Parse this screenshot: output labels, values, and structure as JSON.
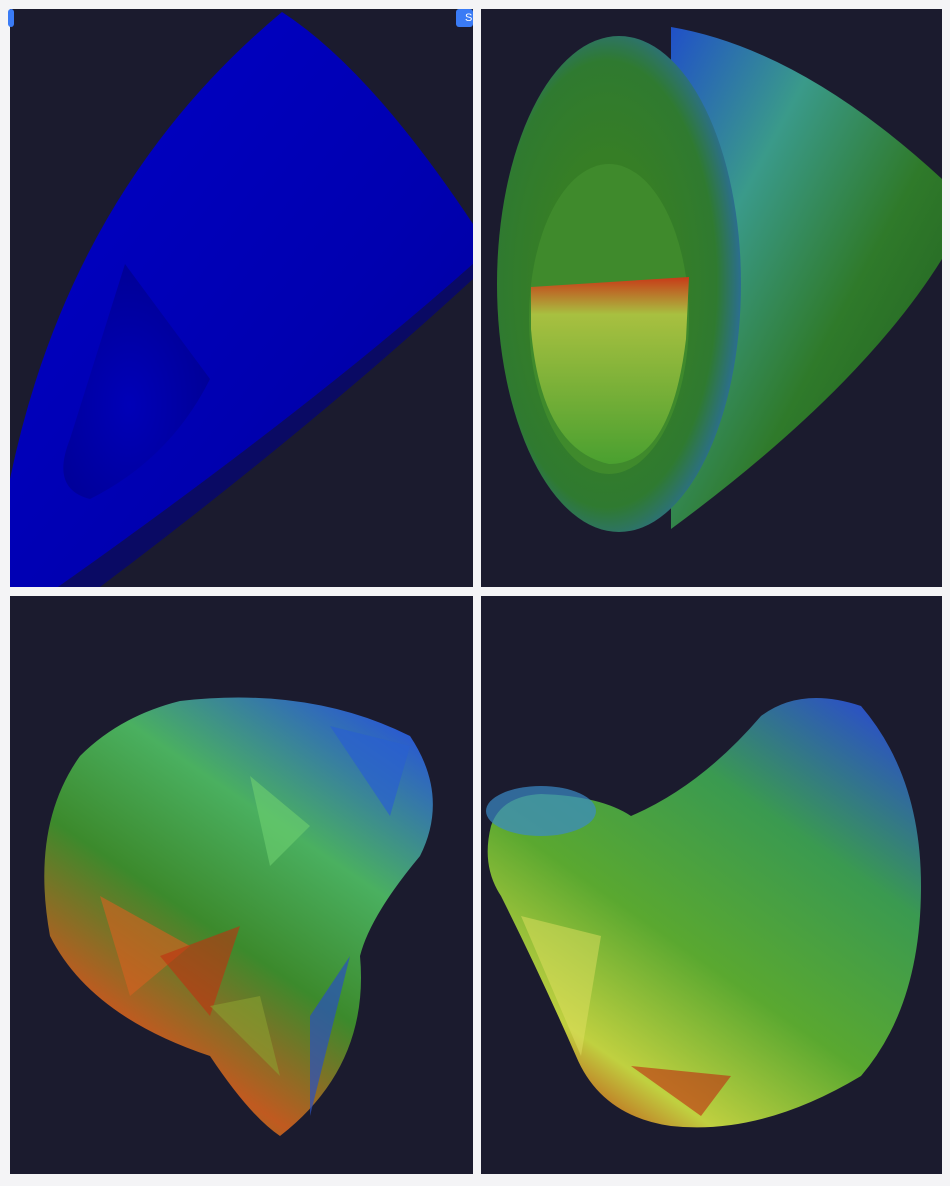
{
  "viewports": [
    {
      "id": "top-left",
      "colormap": "uniform-blue"
    },
    {
      "id": "top-right",
      "colormap": "jet"
    },
    {
      "id": "bottom-left",
      "colormap": "jet"
    },
    {
      "id": "bottom-right",
      "colormap": "jet"
    }
  ],
  "toolbar": {
    "right_button_label": "S",
    "accent_color": "#3a7bf5"
  },
  "colors": {
    "background": "#1b1b2e",
    "blue": "#0000b4",
    "green": "#3a8a2a",
    "red": "#b02010",
    "yellow": "#d8e040"
  }
}
